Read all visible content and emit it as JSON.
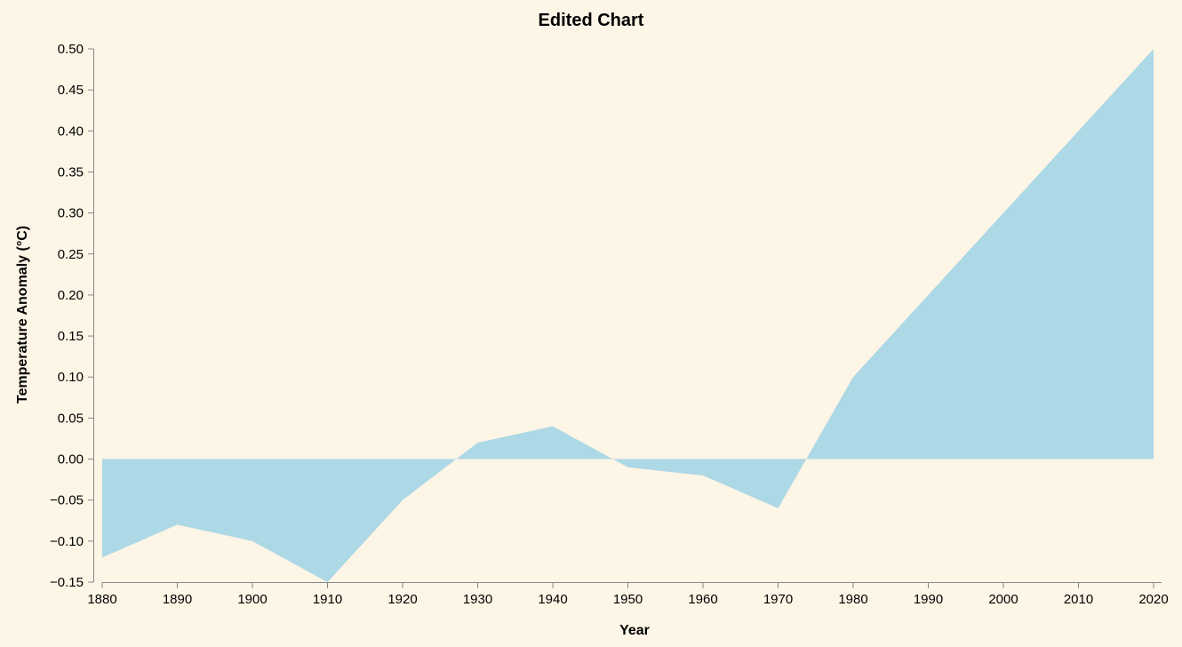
{
  "colors": {
    "background": "#fdf5e6",
    "area_fill": "#add8e6",
    "axis": "#888888",
    "text": "#000000"
  },
  "chart_data": {
    "type": "area",
    "title": "Edited Chart",
    "xlabel": "Year",
    "ylabel": "Temperature Anomaly (°C)",
    "x": [
      1880,
      1890,
      1900,
      1910,
      1920,
      1930,
      1940,
      1950,
      1960,
      1970,
      1980,
      1990,
      2000,
      2010,
      2020
    ],
    "series": [
      {
        "values": [
          -0.12,
          -0.08,
          -0.1,
          -0.15,
          -0.05,
          0.02,
          0.04,
          -0.01,
          -0.02,
          -0.06,
          0.1,
          0.2,
          0.3,
          0.4,
          0.5
        ]
      }
    ],
    "baseline": 0,
    "xlim": [
      1880,
      2020
    ],
    "ylim": [
      -0.15,
      0.5
    ],
    "xticks": [
      "1880",
      "1890",
      "1900",
      "1910",
      "1920",
      "1930",
      "1940",
      "1950",
      "1960",
      "1970",
      "1980",
      "1990",
      "2000",
      "2010",
      "2020"
    ],
    "yticks": [
      "0.50",
      "0.45",
      "0.40",
      "0.35",
      "0.30",
      "0.25",
      "0.20",
      "0.15",
      "0.10",
      "0.05",
      "0.00",
      "−0.05",
      "−0.10",
      "−0.15"
    ],
    "grid": false,
    "legend": "none"
  }
}
